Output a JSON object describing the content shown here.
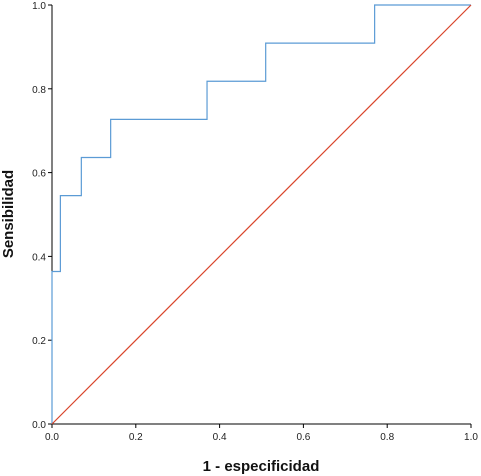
{
  "chart_data": {
    "type": "line",
    "title": "",
    "xlabel": "1 - especificidad",
    "ylabel": "Sensibilidad",
    "xlim": [
      0.0,
      1.0
    ],
    "ylim": [
      0.0,
      1.0
    ],
    "x_ticks": [
      "0.0",
      "0.2",
      "0.4",
      "0.6",
      "0.8",
      "1.0"
    ],
    "y_ticks": [
      "0.0",
      "0.2",
      "0.4",
      "0.6",
      "0.8",
      "1.0"
    ],
    "grid": false,
    "legend": "none",
    "series": [
      {
        "color": "#5b9bd5",
        "x": [
          0.0,
          0.0,
          0.02,
          0.02,
          0.07,
          0.07,
          0.14,
          0.14,
          0.37,
          0.37,
          0.51,
          0.51,
          0.77,
          0.77,
          1.0
        ],
        "y": [
          0.0,
          0.364,
          0.364,
          0.545,
          0.545,
          0.636,
          0.636,
          0.727,
          0.727,
          0.818,
          0.818,
          0.909,
          0.909,
          1.0,
          1.0
        ]
      },
      {
        "color": "#d9452b",
        "x": [
          0.0,
          1.0
        ],
        "y": [
          0.0,
          1.0
        ]
      }
    ]
  }
}
